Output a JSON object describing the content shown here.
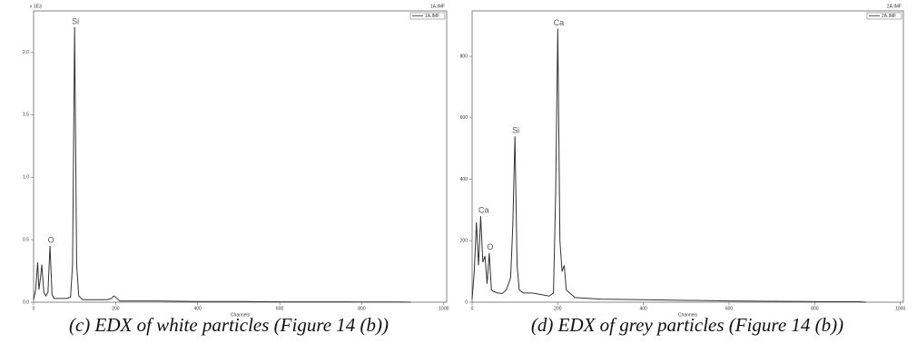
{
  "chart_data": [
    {
      "type": "line",
      "title": "1A.IMF",
      "y_scale_label": "x 1E3",
      "xlabel": "Channels",
      "caption": "(c) EDX of white particles (Figure 14 (b))",
      "xlim": [
        0,
        1007
      ],
      "xticks": [
        0,
        200,
        400,
        600,
        800,
        1000
      ],
      "ylim": [
        0,
        2.33
      ],
      "yticks": [
        {
          "value": 0,
          "label": "0.0"
        },
        0.5,
        {
          "value": 1,
          "label": "1.0"
        },
        1.5,
        {
          "value": 2,
          "label": "2.0"
        }
      ],
      "x": [
        0,
        5,
        10,
        13,
        17,
        20,
        25,
        30,
        35,
        40,
        45,
        50,
        60,
        70,
        80,
        90,
        95,
        100,
        105,
        110,
        120,
        140,
        160,
        180,
        190,
        195,
        200,
        210,
        240,
        300,
        400,
        500,
        600,
        700,
        800,
        900,
        920
      ],
      "series": [
        {
          "name": "1A.IMF",
          "color": "#333333",
          "values": [
            0.02,
            0.1,
            0.32,
            0.1,
            0.2,
            0.3,
            0.08,
            0.05,
            0.08,
            0.45,
            0.06,
            0.03,
            0.03,
            0.03,
            0.03,
            0.04,
            0.3,
            2.2,
            0.3,
            0.05,
            0.02,
            0.02,
            0.02,
            0.02,
            0.03,
            0.05,
            0.04,
            0.01,
            0.01,
            0.01,
            0.005,
            0.005,
            0.003,
            0.003,
            0.002,
            0.002,
            0
          ]
        }
      ],
      "annotations": [
        {
          "text": "O",
          "x": 40,
          "y": 0.45
        },
        {
          "text": "Si",
          "x": 100,
          "y": 2.2
        }
      ]
    },
    {
      "type": "line",
      "title": "2A.IMF",
      "xlabel": "Channels",
      "caption": "(d) EDX of grey particles (Figure 14 (b))",
      "xlim": [
        0,
        1007
      ],
      "xticks": [
        0,
        200,
        400,
        600,
        800,
        1000
      ],
      "ylim": [
        0,
        948
      ],
      "yticks": [
        0,
        200,
        400,
        600,
        800
      ],
      "x": [
        0,
        5,
        10,
        15,
        20,
        25,
        30,
        35,
        40,
        45,
        50,
        60,
        70,
        80,
        85,
        90,
        95,
        100,
        105,
        110,
        120,
        140,
        160,
        180,
        190,
        195,
        200,
        205,
        210,
        215,
        220,
        240,
        300,
        400,
        500,
        600,
        700,
        800,
        900,
        920
      ],
      "series": [
        {
          "name": "2A.IMF",
          "color": "#333333",
          "values": [
            10,
            100,
            260,
            120,
            280,
            130,
            150,
            60,
            160,
            40,
            35,
            30,
            28,
            40,
            60,
            80,
            250,
            540,
            120,
            40,
            30,
            30,
            25,
            20,
            30,
            350,
            890,
            200,
            100,
            120,
            40,
            15,
            10,
            8,
            6,
            4,
            3,
            2,
            2,
            0
          ]
        }
      ],
      "annotations": [
        {
          "text": "Ca",
          "x": 25,
          "y": 280
        },
        {
          "text": "O",
          "x": 40,
          "y": 160
        },
        {
          "text": "Si",
          "x": 100,
          "y": 540
        },
        {
          "text": "Ca",
          "x": 200,
          "y": 890
        }
      ]
    }
  ]
}
